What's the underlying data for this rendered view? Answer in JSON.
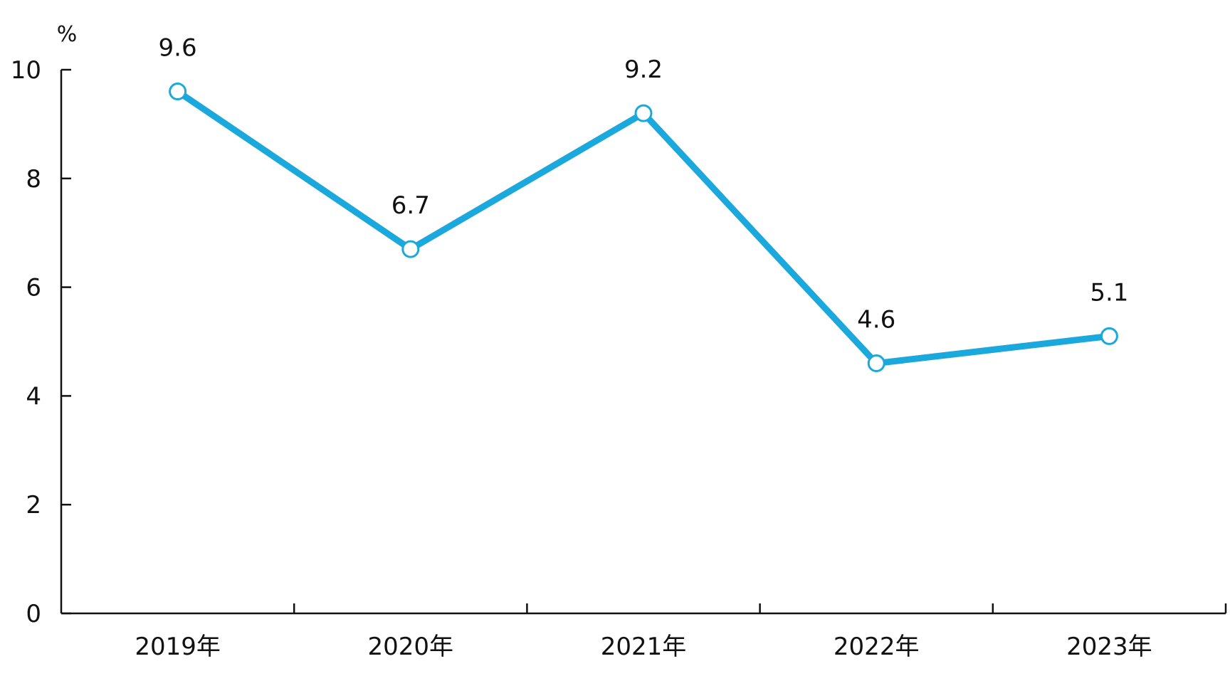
{
  "chart_data": {
    "type": "line",
    "categories": [
      "2019年",
      "2020年",
      "2021年",
      "2022年",
      "2023年"
    ],
    "series": [
      {
        "values": [
          9.6,
          6.7,
          9.2,
          4.6,
          5.1
        ],
        "color": "#1ba8dc"
      }
    ],
    "data_labels": [
      "9.6",
      "6.7",
      "9.2",
      "4.6",
      "5.1"
    ],
    "y_unit": "%",
    "y_ticks": [
      "0",
      "2",
      "4",
      "6",
      "8",
      "10"
    ],
    "ylim": [
      0,
      10
    ],
    "grid": false,
    "legend": "none",
    "marker": "hollow-circle"
  }
}
